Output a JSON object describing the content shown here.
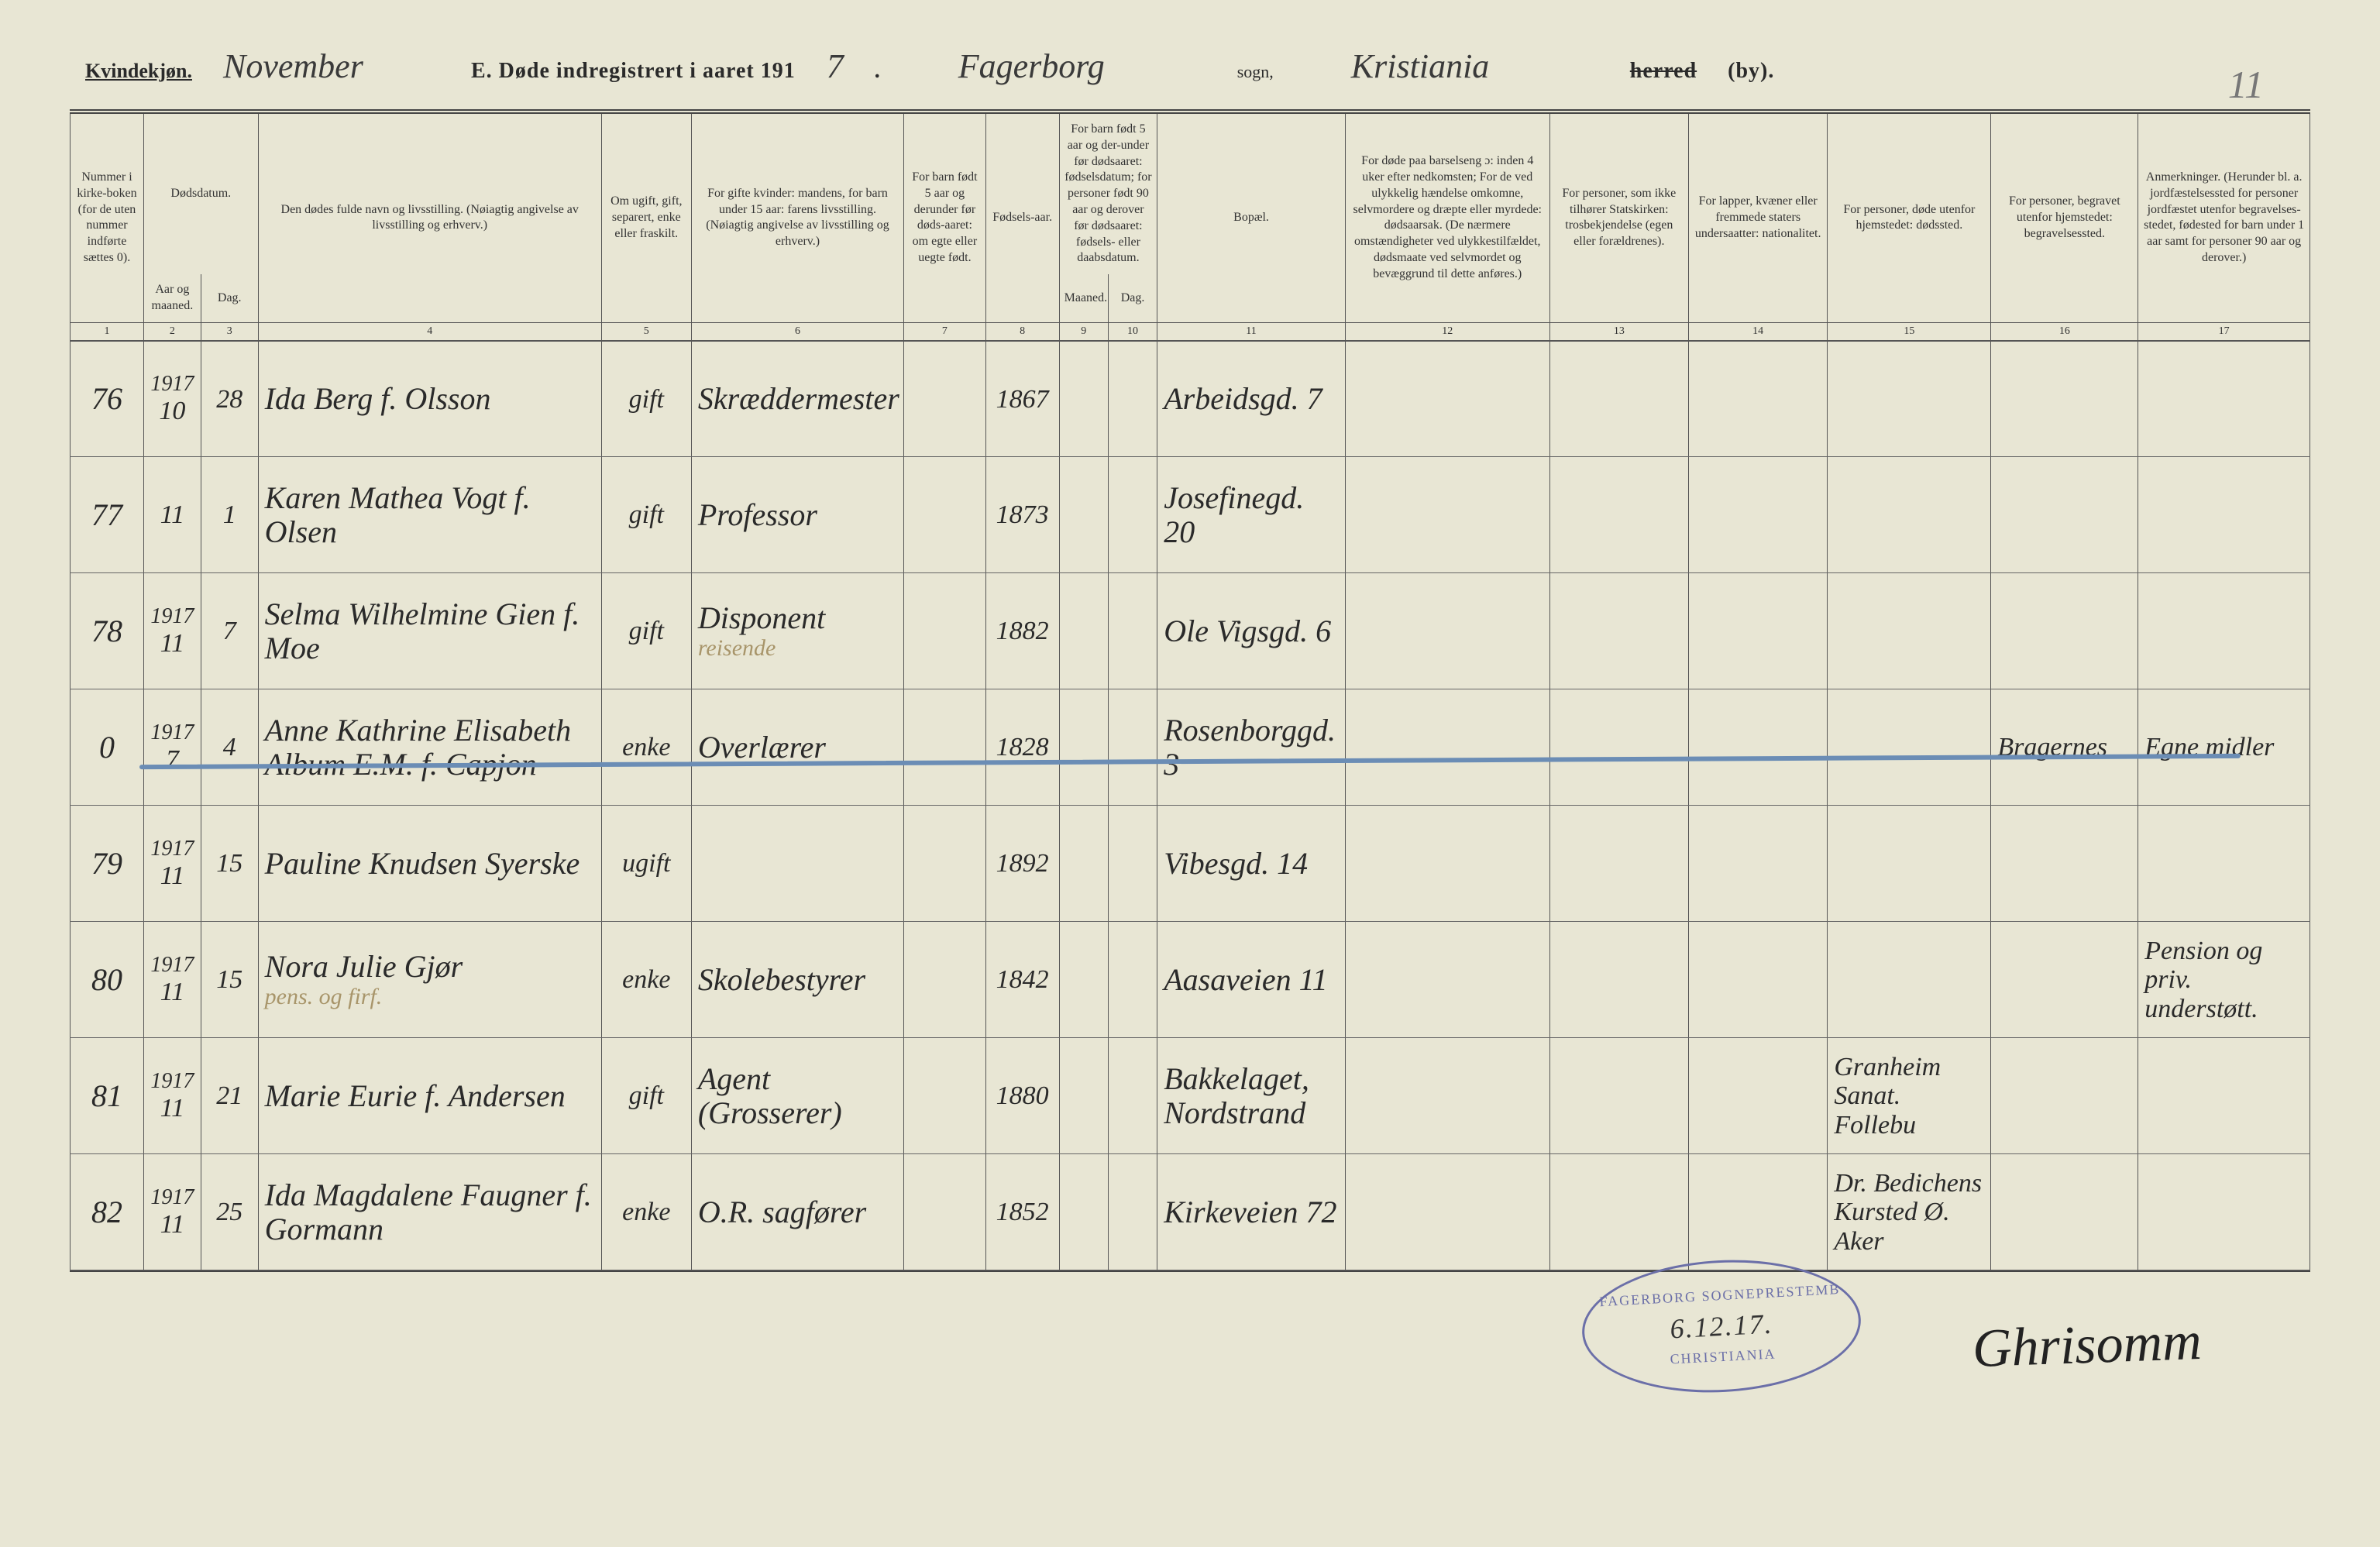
{
  "corner_page_number": "11",
  "header": {
    "gender_label": "Kvindekjøn.",
    "month": "November",
    "title_prefix": "E.  Døde indregistrert i aaret 191",
    "year_digit": "7",
    "parish": "Fagerborg",
    "sogn_label": "sogn,",
    "district": "Kristiania",
    "herred_struck": "herred",
    "by_label": "(by)."
  },
  "columns": {
    "c1": "Nummer i kirke-boken (for de uten nummer indførte sættes 0).",
    "c2_3_top": "Dødsdatum.",
    "c2": "Aar og maaned.",
    "c3": "Dag.",
    "c4": "Den dødes fulde navn og livsstilling. (Nøiagtig angivelse av livsstilling og erhverv.)",
    "c5": "Om ugift, gift, separert, enke eller fraskilt.",
    "c6": "For gifte kvinder: mandens, for barn under 15 aar: farens livsstilling. (Nøiagtig angivelse av livsstilling og erhverv.)",
    "c7": "For barn født 5 aar og derunder før døds-aaret: om egte eller uegte født.",
    "c8": "Fødsels-aar.",
    "c9_10_top": "For barn født 5 aar og der-under før dødsaaret: fødselsdatum; for personer født 90 aar og derover før dødsaaret: fødsels- eller daabsdatum.",
    "c9": "Maaned.",
    "c10": "Dag.",
    "c11": "Bopæl.",
    "c12": "For døde paa barselseng ɔ: inden 4 uker efter nedkomsten; For de ved ulykkelig hændelse omkomne, selvmordere og dræpte eller myrdede: dødsaarsak. (De nærmere omstændigheter ved ulykkestilfældet, dødsmaate ved selvmordet og bevæggrund til dette anføres.)",
    "c13": "For personer, som ikke tilhører Statskirken: trosbekjendelse (egen eller forældrenes).",
    "c14": "For lapper, kvæner eller fremmede staters undersaatter: nationalitet.",
    "c15": "For personer, døde utenfor hjemstedet: dødssted.",
    "c16": "For personer, begravet utenfor hjemstedet: begravelsessted.",
    "c17": "Anmerkninger. (Herunder bl. a. jordfæstelsessted for personer jordfæstet utenfor begravelses-stedet, fødested for barn under 1 aar samt for personer 90 aar og derover.)"
  },
  "colnums": [
    "1",
    "2",
    "3",
    "4",
    "5",
    "6",
    "7",
    "8",
    "9",
    "10",
    "11",
    "12",
    "13",
    "14",
    "15",
    "16",
    "17"
  ],
  "rows": [
    {
      "num": "76",
      "year": "1917",
      "month": "10",
      "day": "28",
      "name": "Ida Berg f. Olsson",
      "status": "gift",
      "spouse": "Skræddermester",
      "birth": "1867",
      "residence": "Arbeidsgd. 7"
    },
    {
      "num": "77",
      "year": "",
      "month": "11",
      "day": "1",
      "name": "Karen Mathea Vogt f. Olsen",
      "status": "gift",
      "spouse": "Professor",
      "birth": "1873",
      "residence": "Josefinegd. 20"
    },
    {
      "num": "78",
      "year": "1917",
      "month": "11",
      "day": "7",
      "name": "Selma Wilhelmine Gien f. Moe",
      "status": "gift",
      "spouse": "Disponent",
      "spouse_note": "reisende",
      "birth": "1882",
      "residence": "Ole Vigsgd. 6"
    },
    {
      "num": "0",
      "year": "1917",
      "month": "7",
      "day": "4",
      "name": "Anne Kathrine Elisabeth Album E.M. f. Capjon",
      "status": "enke",
      "spouse": "Overlærer",
      "birth": "1828",
      "residence": "Rosenborggd. 3",
      "burial": "Bragernes",
      "remarks": "Egne midler"
    },
    {
      "num": "79",
      "year": "1917",
      "month": "11",
      "day": "15",
      "name": "Pauline Knudsen Syerske",
      "status": "ugift",
      "spouse": "",
      "birth": "1892",
      "residence": "Vibesgd. 14"
    },
    {
      "num": "80",
      "year": "1917",
      "month": "11",
      "day": "15",
      "name": "Nora Julie Gjør",
      "name_note": "pens. og firf.",
      "status": "enke",
      "spouse": "Skolebestyrer",
      "birth": "1842",
      "residence": "Aasaveien 11",
      "remarks": "Pension og priv. understøtt."
    },
    {
      "num": "81",
      "year": "1917",
      "month": "11",
      "day": "21",
      "name": "Marie Eurie f. Andersen",
      "status": "gift",
      "spouse": "Agent (Grosserer)",
      "birth": "1880",
      "residence": "Bakkelaget, Nordstrand",
      "death_place": "Granheim Sanat. Follebu"
    },
    {
      "num": "82",
      "year": "1917",
      "month": "11",
      "day": "25",
      "name": "Ida Magdalene Faugner f. Gormann",
      "status": "enke",
      "spouse": "O.R. sagfører",
      "birth": "1852",
      "residence": "Kirkeveien 72",
      "death_place": "Dr. Bedichens Kursted Ø. Aker"
    }
  ],
  "stamp": {
    "top": "FAGERBORG SOGNEPRESTEMB",
    "date": "6.12.17.",
    "bottom": "CHRISTIANIA"
  },
  "signature": "Ghrisomm",
  "colors": {
    "paper": "#e8e6d4",
    "ink": "#2a2a2a",
    "pencil": "#a8956a",
    "blue_pencil": "#6b8db5",
    "stamp": "#6b6fa8",
    "rule": "#555"
  }
}
